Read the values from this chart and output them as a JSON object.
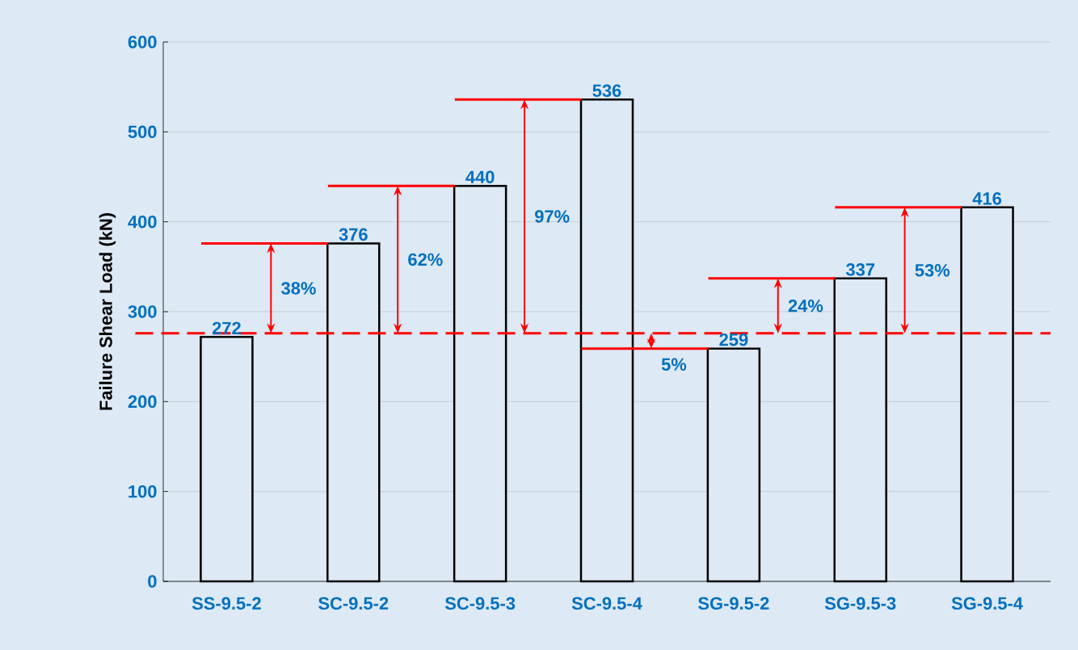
{
  "chart_data": {
    "type": "bar",
    "ylabel": "Failure Shear Load (kN)",
    "categories": [
      "SS-9.5-2",
      "SC-9.5-2",
      "SC-9.5-3",
      "SC-9.5-4",
      "SG-9.5-2",
      "SG-9.5-3",
      "SG-9.5-4"
    ],
    "values": [
      272,
      376,
      440,
      536,
      259,
      337,
      416
    ],
    "color": "#000000",
    "data_labels": true,
    "ylim": [
      0,
      600
    ],
    "yticks": [
      0,
      100,
      200,
      300,
      400,
      500,
      600
    ],
    "grid": "y",
    "ref_lines": [
      {
        "axis": "y",
        "value": 276,
        "color": "#ff0000",
        "line_style": "dashed"
      }
    ],
    "annotations": [
      "38%",
      "62%",
      "97%",
      {
        "text": "5%",
        "x": "SG-9.5-2",
        "y": 259
      },
      "24%",
      "53%"
    ]
  }
}
